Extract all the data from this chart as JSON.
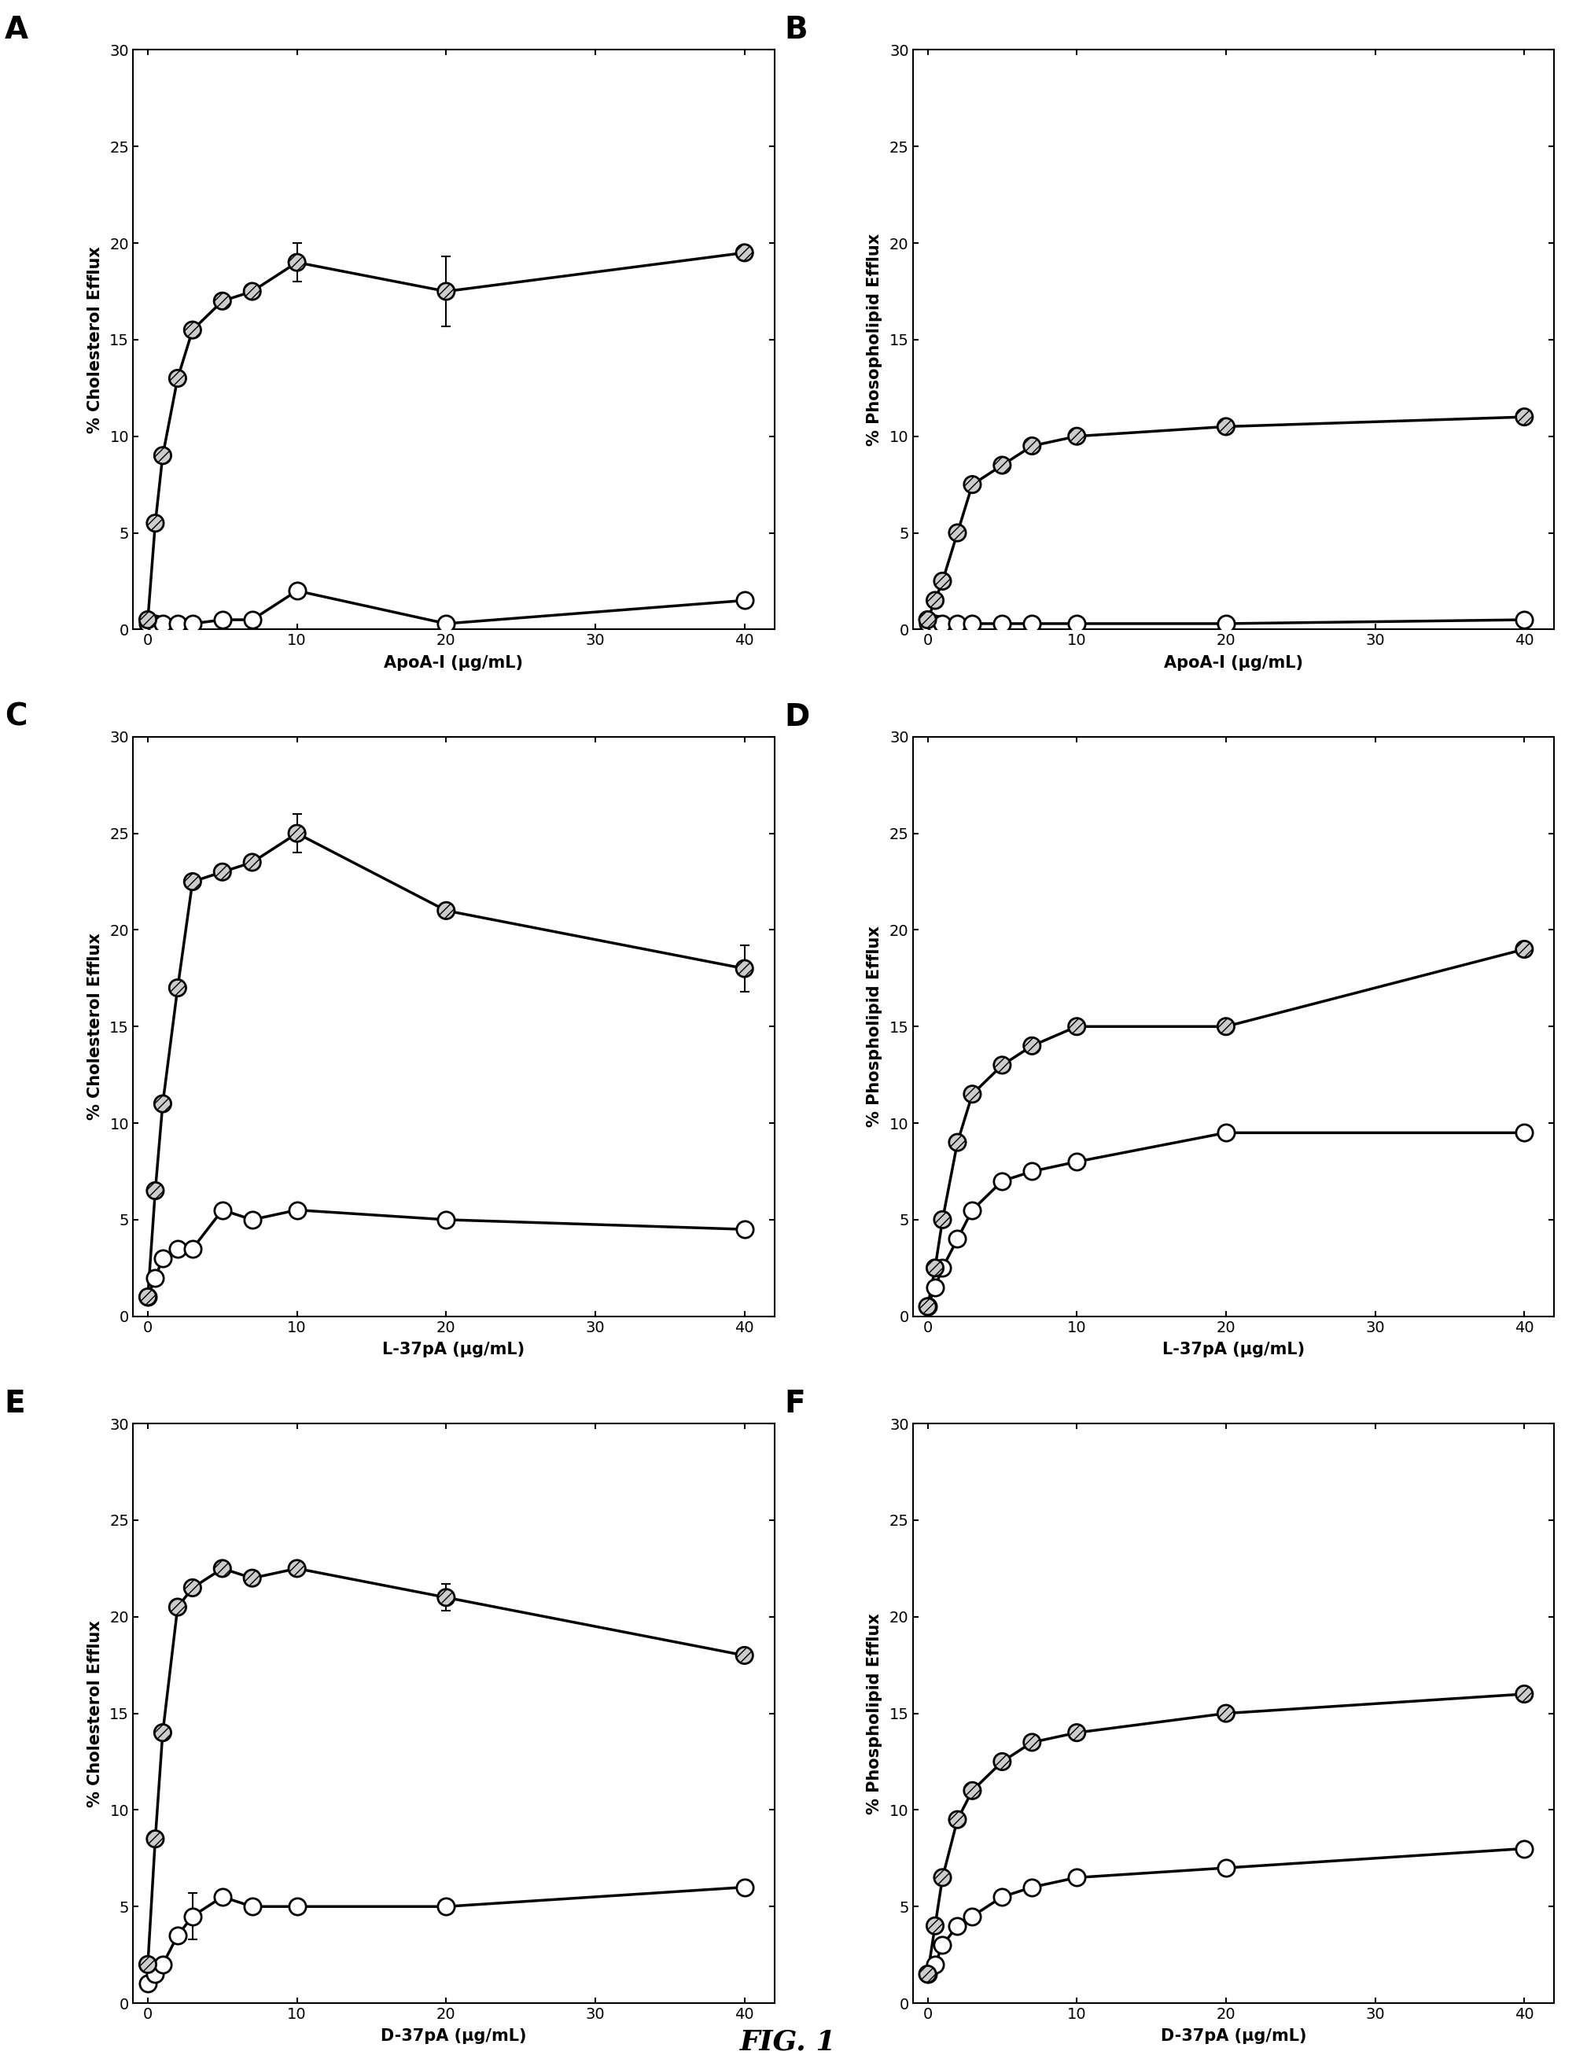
{
  "panels": [
    {
      "label": "A",
      "ylabel": "% Cholesterol Efflux",
      "xlabel": "ApoA-I (μg/mL)",
      "xlim": [
        -1,
        42
      ],
      "ylim": [
        0,
        30
      ],
      "yticks": [
        0,
        5,
        10,
        15,
        20,
        25,
        30
      ],
      "xticks": [
        0,
        10,
        20,
        30,
        40
      ],
      "series_filled": {
        "x": [
          0,
          0.5,
          1,
          2,
          3,
          5,
          7,
          10,
          20,
          40
        ],
        "y": [
          0.5,
          5.5,
          9.0,
          13.0,
          15.5,
          17.0,
          17.5,
          19.0,
          17.5,
          19.5
        ],
        "yerr": [
          0,
          0,
          0,
          0,
          0,
          0,
          0,
          1.0,
          1.8,
          0
        ]
      },
      "series_open": {
        "x": [
          0,
          0.5,
          1,
          2,
          3,
          5,
          7,
          10,
          20,
          40
        ],
        "y": [
          0.3,
          0.3,
          0.3,
          0.3,
          0.3,
          0.5,
          0.5,
          2.0,
          0.3,
          1.5
        ],
        "yerr": [
          0,
          0,
          0,
          0,
          0,
          0,
          0,
          0,
          0,
          0
        ]
      }
    },
    {
      "label": "B",
      "ylabel": "% Phosopholipid Efflux",
      "xlabel": "ApoA-I (μg/mL)",
      "xlim": [
        -1,
        42
      ],
      "ylim": [
        0,
        30
      ],
      "yticks": [
        0,
        5,
        10,
        15,
        20,
        25,
        30
      ],
      "xticks": [
        0,
        10,
        20,
        30,
        40
      ],
      "series_filled": {
        "x": [
          0,
          0.5,
          1,
          2,
          3,
          5,
          7,
          10,
          20,
          40
        ],
        "y": [
          0.5,
          1.5,
          2.5,
          5.0,
          7.5,
          8.5,
          9.5,
          10.0,
          10.5,
          11.0
        ],
        "yerr": [
          0,
          0,
          0,
          0,
          0,
          0,
          0,
          0,
          0,
          0
        ]
      },
      "series_open": {
        "x": [
          0,
          0.5,
          1,
          2,
          3,
          5,
          7,
          10,
          20,
          40
        ],
        "y": [
          0.3,
          0.3,
          0.3,
          0.3,
          0.3,
          0.3,
          0.3,
          0.3,
          0.3,
          0.5
        ],
        "yerr": [
          0,
          0,
          0,
          0,
          0,
          0,
          0,
          0,
          0,
          0
        ]
      }
    },
    {
      "label": "C",
      "ylabel": "% Cholesterol Efflux",
      "xlabel": "L-37pA (μg/mL)",
      "xlim": [
        -1,
        42
      ],
      "ylim": [
        0,
        30
      ],
      "yticks": [
        0,
        5,
        10,
        15,
        20,
        25,
        30
      ],
      "xticks": [
        0,
        10,
        20,
        30,
        40
      ],
      "series_filled": {
        "x": [
          0,
          0.5,
          1,
          2,
          3,
          5,
          7,
          10,
          20,
          40
        ],
        "y": [
          1.0,
          6.5,
          11.0,
          17.0,
          22.5,
          23.0,
          23.5,
          25.0,
          21.0,
          18.0
        ],
        "yerr": [
          0,
          0,
          0,
          0,
          0,
          0,
          0,
          1.0,
          0,
          1.2
        ]
      },
      "series_open": {
        "x": [
          0,
          0.5,
          1,
          2,
          3,
          5,
          7,
          10,
          20,
          40
        ],
        "y": [
          1.0,
          2.0,
          3.0,
          3.5,
          3.5,
          5.5,
          5.0,
          5.5,
          5.0,
          4.5
        ],
        "yerr": [
          0,
          0,
          0,
          0,
          0,
          0,
          0,
          0,
          0,
          0
        ]
      }
    },
    {
      "label": "D",
      "ylabel": "% Phospholipid Efflux",
      "xlabel": "L-37pA (μg/mL)",
      "xlim": [
        -1,
        42
      ],
      "ylim": [
        0,
        30
      ],
      "yticks": [
        0,
        5,
        10,
        15,
        20,
        25,
        30
      ],
      "xticks": [
        0,
        10,
        20,
        30,
        40
      ],
      "series_filled": {
        "x": [
          0,
          0.5,
          1,
          2,
          3,
          5,
          7,
          10,
          20,
          40
        ],
        "y": [
          0.5,
          2.5,
          5.0,
          9.0,
          11.5,
          13.0,
          14.0,
          15.0,
          15.0,
          19.0
        ],
        "yerr": [
          0,
          0,
          0,
          0,
          0,
          0,
          0,
          0,
          0,
          0
        ]
      },
      "series_open": {
        "x": [
          0,
          0.5,
          1,
          2,
          3,
          5,
          7,
          10,
          20,
          40
        ],
        "y": [
          0.5,
          1.5,
          2.5,
          4.0,
          5.5,
          7.0,
          7.5,
          8.0,
          9.5,
          9.5
        ],
        "yerr": [
          0,
          0,
          0,
          0,
          0,
          0,
          0,
          0,
          0,
          0
        ]
      }
    },
    {
      "label": "E",
      "ylabel": "% Cholesterol Efflux",
      "xlabel": "D-37pA (μg/mL)",
      "xlim": [
        -1,
        42
      ],
      "ylim": [
        0,
        30
      ],
      "yticks": [
        0,
        5,
        10,
        15,
        20,
        25,
        30
      ],
      "xticks": [
        0,
        10,
        20,
        30,
        40
      ],
      "series_filled": {
        "x": [
          0,
          0.5,
          1,
          2,
          3,
          5,
          7,
          10,
          20,
          40
        ],
        "y": [
          2.0,
          8.5,
          14.0,
          20.5,
          21.5,
          22.5,
          22.0,
          22.5,
          21.0,
          18.0
        ],
        "yerr": [
          0,
          0,
          0,
          0,
          0,
          0,
          0,
          0,
          0.7,
          0
        ]
      },
      "series_open": {
        "x": [
          0,
          0.5,
          1,
          2,
          3,
          5,
          7,
          10,
          20,
          40
        ],
        "y": [
          1.0,
          1.5,
          2.0,
          3.5,
          4.5,
          5.5,
          5.0,
          5.0,
          5.0,
          6.0
        ],
        "yerr": [
          0,
          0,
          0,
          0,
          1.2,
          0,
          0,
          0,
          0,
          0
        ]
      }
    },
    {
      "label": "F",
      "ylabel": "% Phospholipid Efflux",
      "xlabel": "D-37pA (μg/mL)",
      "xlim": [
        -1,
        42
      ],
      "ylim": [
        0,
        30
      ],
      "yticks": [
        0,
        5,
        10,
        15,
        20,
        25,
        30
      ],
      "xticks": [
        0,
        10,
        20,
        30,
        40
      ],
      "series_filled": {
        "x": [
          0,
          0.5,
          1,
          2,
          3,
          5,
          7,
          10,
          20,
          40
        ],
        "y": [
          1.5,
          4.0,
          6.5,
          9.5,
          11.0,
          12.5,
          13.5,
          14.0,
          15.0,
          16.0
        ],
        "yerr": [
          0,
          0,
          0,
          0,
          0,
          0,
          0,
          0,
          0,
          0
        ]
      },
      "series_open": {
        "x": [
          0,
          0.5,
          1,
          2,
          3,
          5,
          7,
          10,
          20,
          40
        ],
        "y": [
          1.5,
          2.0,
          3.0,
          4.0,
          4.5,
          5.5,
          6.0,
          6.5,
          7.0,
          8.0
        ],
        "yerr": [
          0,
          0,
          0,
          0,
          0,
          0,
          0,
          0,
          0,
          0
        ]
      }
    }
  ],
  "fig_title": "FIG. 1",
  "fig_width": 20.04,
  "fig_height": 26.27,
  "marker_size": 14,
  "line_width": 2.5,
  "edge_color": "#000000",
  "title_fontsize": 26,
  "label_fontsize": 15,
  "tick_fontsize": 14,
  "panel_label_fontsize": 28
}
